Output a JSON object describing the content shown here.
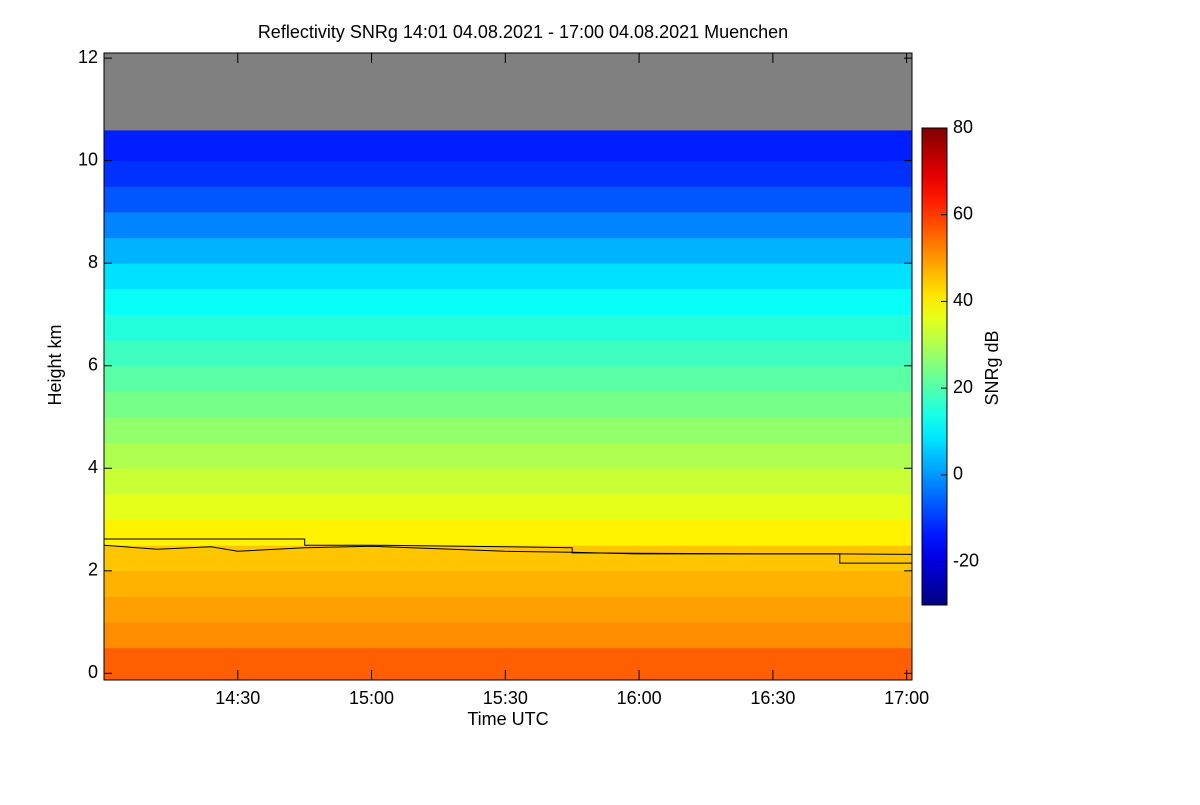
{
  "chart_data": {
    "type": "heatmap",
    "title": "Reflectivity SNRg   14:01 04.08.2021 - 17:00 04.08.2021 Muenchen",
    "x_label": "Time UTC",
    "y_label": "Height km",
    "colorbar_label": "SNRg dB",
    "xlim": [
      14.0,
      17.02
    ],
    "xticks": [
      {
        "value": 14.5,
        "label": "14:30"
      },
      {
        "value": 15.0,
        "label": "15:00"
      },
      {
        "value": 15.5,
        "label": "15:30"
      },
      {
        "value": 16.0,
        "label": "16:00"
      },
      {
        "value": 16.5,
        "label": "16:30"
      },
      {
        "value": 17.0,
        "label": "17:00"
      }
    ],
    "ylim": [
      -0.13,
      12.1
    ],
    "yticks": [
      0,
      2,
      4,
      6,
      8,
      10,
      12
    ],
    "clim": [
      -30,
      80
    ],
    "cticks": [
      -20,
      0,
      20,
      40,
      60,
      80
    ],
    "colormap": "jet",
    "missing_color": "#808080",
    "y_bins": [
      -0.13,
      0.5,
      1,
      1.5,
      2,
      2.5,
      3,
      3.5,
      4,
      4.5,
      5,
      5.5,
      6,
      6.5,
      7,
      7.5,
      8,
      8.5,
      9,
      9.5,
      10,
      10.6,
      12.1
    ],
    "z": [
      56,
      51,
      49,
      47,
      45,
      40,
      36,
      33,
      30,
      27,
      24,
      21,
      18,
      15,
      12,
      8,
      3,
      -2,
      -7,
      -11,
      -13,
      null
    ],
    "series": [
      {
        "color": "#000000",
        "x": [
          14.0,
          14.75,
          14.75,
          15.0,
          15.5,
          15.75,
          15.75,
          16.5,
          16.75,
          16.75,
          17.02
        ],
        "values": [
          2.62,
          2.62,
          2.5,
          2.5,
          2.47,
          2.45,
          2.35,
          2.33,
          2.33,
          2.15,
          2.15
        ]
      },
      {
        "color": "#000000",
        "x": [
          14.0,
          14.2,
          14.4,
          14.5,
          14.75,
          15.0,
          15.25,
          15.5,
          15.75,
          16.0,
          16.5,
          16.75,
          17.02
        ],
        "values": [
          2.5,
          2.42,
          2.47,
          2.38,
          2.45,
          2.48,
          2.43,
          2.38,
          2.36,
          2.33,
          2.33,
          2.33,
          2.32
        ]
      }
    ]
  }
}
